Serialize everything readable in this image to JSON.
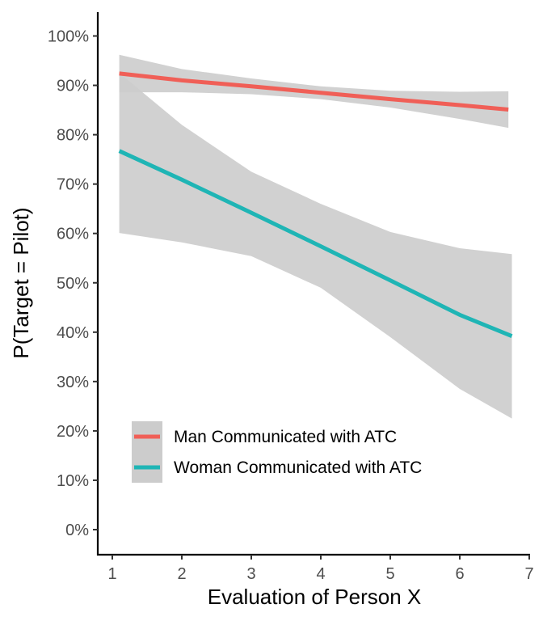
{
  "chart_data": {
    "type": "line",
    "title": "",
    "xlabel": "Evaluation of Person X",
    "ylabel": "P(Target = Pilot)",
    "xlim": [
      0.8,
      7.0
    ],
    "ylim": [
      -0.05,
      1.05
    ],
    "x_ticks": [
      1,
      2,
      3,
      4,
      5,
      6,
      7
    ],
    "x_tick_labels": [
      "1",
      "2",
      "3",
      "4",
      "5",
      "6",
      "7"
    ],
    "y_ticks": [
      0,
      0.1,
      0.2,
      0.3,
      0.4,
      0.5,
      0.6,
      0.7,
      0.8,
      0.9,
      1.0
    ],
    "y_tick_labels": [
      "0%",
      "10%",
      "20%",
      "30%",
      "40%",
      "50%",
      "60%",
      "70%",
      "80%",
      "90%",
      "100%"
    ],
    "grid": false,
    "legend_position": "bottom-left (inside)",
    "band_color": "#cccccc",
    "series": [
      {
        "name": "Man Communicated with ATC",
        "color": "#f05f57",
        "x": [
          1.1,
          2.0,
          3.0,
          4.0,
          5.0,
          6.0,
          6.7
        ],
        "y": [
          0.924,
          0.91,
          0.898,
          0.885,
          0.872,
          0.86,
          0.851
        ],
        "lower": [
          0.886,
          0.886,
          0.882,
          0.872,
          0.855,
          0.832,
          0.814
        ],
        "upper": [
          0.962,
          0.933,
          0.914,
          0.898,
          0.889,
          0.887,
          0.888
        ]
      },
      {
        "name": "Woman Communicated with ATC",
        "color": "#1fb5b5",
        "x": [
          1.1,
          2.0,
          3.0,
          4.0,
          5.0,
          6.0,
          6.75
        ],
        "y": [
          0.767,
          0.709,
          0.642,
          0.574,
          0.505,
          0.435,
          0.392
        ],
        "lower": [
          0.601,
          0.582,
          0.554,
          0.49,
          0.39,
          0.285,
          0.225
        ],
        "upper": [
          0.925,
          0.82,
          0.725,
          0.66,
          0.603,
          0.57,
          0.558
        ]
      }
    ]
  }
}
